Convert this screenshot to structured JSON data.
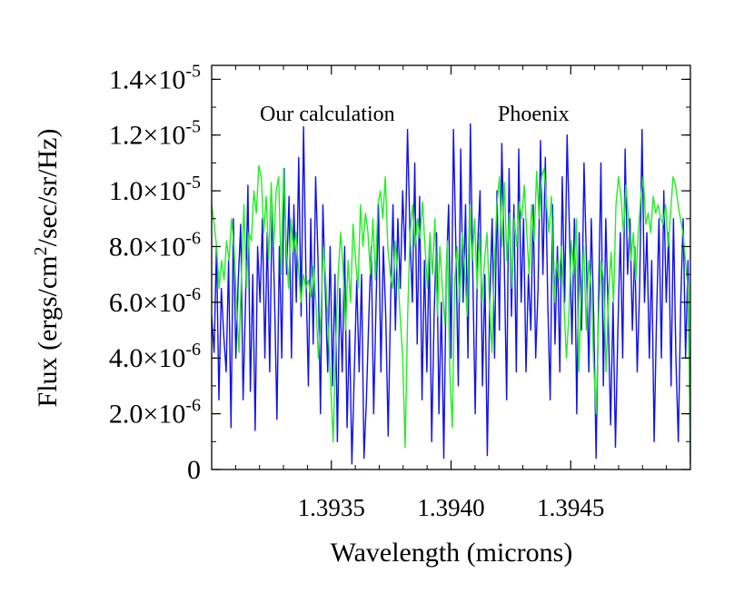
{
  "chart_data": {
    "type": "line",
    "xlabel": "Wavelength (microns)",
    "ylabel": "Flux (ergs/cm²/sec/sr/Hz)",
    "xlim": [
      1.393,
      1.395
    ],
    "ylim": [
      0,
      1.45e-05
    ],
    "x_ticks": [
      {
        "value": 1.3935,
        "label": "1.3935"
      },
      {
        "value": 1.394,
        "label": "1.3940"
      },
      {
        "value": 1.3945,
        "label": "1.3945"
      }
    ],
    "y_ticks": [
      {
        "value": 0,
        "mantissa": "0",
        "exponent": ""
      },
      {
        "value": 2e-06,
        "mantissa": "2.0×10",
        "exponent": "-6"
      },
      {
        "value": 4e-06,
        "mantissa": "4.0×10",
        "exponent": "-6"
      },
      {
        "value": 6e-06,
        "mantissa": "6.0×10",
        "exponent": "-6"
      },
      {
        "value": 8e-06,
        "mantissa": "8.0×10",
        "exponent": "-6"
      },
      {
        "value": 1e-05,
        "mantissa": "1.0×10",
        "exponent": "-5"
      },
      {
        "value": 1.2e-05,
        "mantissa": "1.2×10",
        "exponent": "-5"
      },
      {
        "value": 1.4e-05,
        "mantissa": "1.4×10",
        "exponent": "-5"
      }
    ],
    "series": [
      {
        "name": "Our calculation",
        "color": "#1010ee",
        "x_start": 1.393,
        "x_end": 1.395,
        "values": [
          5.5e-06,
          4.2e-06,
          8e-06,
          2.5e-06,
          6.5e-06,
          4.8e-06,
          3.5e-06,
          7.5e-06,
          1.5e-06,
          9e-06,
          4e-06,
          6.8e-06,
          8.8e-06,
          2.5e-06,
          6e-06,
          1.02e-05,
          2.8e-06,
          7e-06,
          1.4e-06,
          8e-06,
          6e-06,
          9e-06,
          4e-06,
          8.5e-06,
          3.5e-06,
          9.5e-06,
          6.2e-06,
          1.8e-06,
          8e-06,
          4e-06,
          1.08e-05,
          7e-06,
          9.8e-06,
          4e-06,
          9.5e-06,
          6e-06,
          1.12e-05,
          5.5e-06,
          1.23e-05,
          7e-06,
          3e-06,
          9e-06,
          4.5e-06,
          1.05e-05,
          7.5e-06,
          2e-06,
          9.5e-06,
          6.5e-06,
          3.5e-06,
          8e-06,
          3e-06,
          7e-06,
          1e-06,
          6.5e-06,
          3.5e-06,
          8e-06,
          1.5e-06,
          5e-06,
          2e-07,
          3.5e-06,
          6.8e-06,
          3.5e-06,
          7e-06,
          4e-07,
          2.5e-06,
          5.5e-06,
          8e-06,
          2e-06,
          6e-06,
          9.5e-06,
          3.5e-06,
          8e-06,
          5.5e-06,
          1.2e-06,
          6e-06,
          9.5e-06,
          5e-06,
          9e-06,
          6.5e-06,
          1e-05,
          7.5e-06,
          1.22e-05,
          8.5e-06,
          6e-06,
          1.1e-05,
          4.5e-06,
          9.8e-06,
          2.5e-06,
          7.5e-06,
          3.5e-06,
          8e-06,
          1e-06,
          5.5e-06,
          8.5e-06,
          2e-06,
          6e-06,
          4e-07,
          7e-06,
          9.5e-06,
          4e-06,
          1.22e-05,
          8e-06,
          3e-06,
          1.15e-05,
          6e-06,
          9.5e-06,
          4e-06,
          1.24e-05,
          7e-06,
          2e-06,
          8e-06,
          1e-05,
          3e-06,
          7e-06,
          5e-07,
          6e-06,
          9e-06,
          4e-06,
          1e-05,
          5e-06,
          1.17e-05,
          7.5e-06,
          2.5e-06,
          1.08e-05,
          5.5e-06,
          9.5e-06,
          3.5e-06,
          1.15e-05,
          6e-06,
          9e-06,
          3.5e-06,
          7e-06,
          5e-06,
          9.5e-06,
          4e-06,
          6.5e-06,
          1.18e-05,
          7e-06,
          1.12e-05,
          6e-06,
          2.5e-06,
          9.5e-06,
          4.5e-06,
          8e-06,
          3.5e-06,
          1.05e-05,
          6e-06,
          1.2e-05,
          8.5e-06,
          4.5e-06,
          9e-06,
          2e-06,
          8.5e-06,
          5e-06,
          1.1e-05,
          7.5e-06,
          3.5e-06,
          9e-06,
          5.5e-06,
          4e-07,
          6e-06,
          1.1e-05,
          3e-06,
          9e-06,
          5.5e-06,
          1.6e-06,
          6e-06,
          8e-07,
          5e-06,
          8.5e-06,
          4e-06,
          1.15e-05,
          7e-06,
          9e-06,
          5e-06,
          8e-06,
          3.5e-06,
          6.5e-06,
          1.22e-05,
          6e-06,
          8.5e-06,
          4e-06,
          7.5e-06,
          1e-06,
          5.5e-06,
          9e-06,
          4e-06,
          1e-05,
          6e-06,
          8.5e-06,
          3e-06,
          9e-06,
          4e-06,
          1e-06,
          6e-06,
          9e-06,
          4e-06,
          7.5e-06,
          2e-07
        ]
      },
      {
        "name": "Phoenix",
        "color": "#22ee22",
        "x_start": 1.393,
        "x_end": 1.395,
        "values": [
          9.5e-06,
          8.8e-06,
          8e-06,
          6.5e-06,
          7.5e-06,
          6.8e-06,
          8.2e-06,
          7.5e-06,
          9e-06,
          8e-06,
          6e-06,
          4.2e-06,
          7e-06,
          9.5e-06,
          6.5e-06,
          8.5e-06,
          8.2e-06,
          1e-05,
          9.2e-06,
          1.09e-05,
          1.05e-05,
          8.5e-06,
          9.8e-06,
          7.5e-06,
          1.03e-05,
          8e-06,
          1e-05,
          1.05e-05,
          7e-06,
          1.08e-05,
          8.2e-06,
          6.5e-06,
          9e-06,
          7.8e-06,
          8.5e-06,
          7.2e-06,
          6e-06,
          7e-06,
          6.5e-06,
          6.8e-06,
          6.2e-06,
          7.3e-06,
          6e-06,
          4e-06,
          5.5e-06,
          8e-06,
          6.8e-06,
          5e-06,
          3e-06,
          1e-06,
          4.5e-06,
          7e-06,
          8.5e-06,
          7.2e-06,
          5e-06,
          7.5e-06,
          6e-06,
          8.8e-06,
          7.5e-06,
          6.5e-06,
          9.5e-06,
          8e-06,
          9.2e-06,
          8.5e-06,
          7e-06,
          9e-06,
          6.8e-06,
          9.5e-06,
          1e-05,
          9e-06,
          1.05e-05,
          8e-06,
          7e-06,
          6.5e-06,
          8.2e-06,
          7e-06,
          5.5e-06,
          4e-06,
          8e-07,
          5.5e-06,
          8.5e-06,
          9.5e-06,
          8e-06,
          9e-06,
          8.3e-06,
          9.6e-06,
          8e-06,
          6.5e-06,
          8.5e-06,
          7e-06,
          9e-06,
          5.5e-06,
          8e-06,
          6.5e-06,
          5.2e-06,
          8.2e-06,
          3.5e-06,
          1.5e-06,
          6.8e-06,
          8e-06,
          6e-06,
          8.5e-06,
          7.2e-06,
          5.5e-06,
          9.5e-06,
          7.5e-06,
          9e-06,
          6.5e-06,
          8.5e-06,
          6e-06,
          7.5e-06,
          8.5e-06,
          6e-06,
          4.2e-06,
          7.5e-06,
          9.5e-06,
          1.05e-05,
          8e-06,
          1.03e-05,
          7.5e-06,
          9.2e-06,
          6.5e-06,
          9e-06,
          8e-06,
          9.6e-06,
          9e-06,
          1.02e-05,
          8.5e-06,
          7e-06,
          9.5e-06,
          8.2e-06,
          1.07e-05,
          9e-06,
          1.05e-05,
          1.08e-05,
          9.5e-06,
          8.5e-06,
          9.8e-06,
          6e-06,
          7.5e-06,
          6.8e-06,
          8e-06,
          6e-06,
          4e-06,
          5.5e-06,
          8.2e-06,
          7e-06,
          9e-06,
          3.5e-06,
          6.5e-06,
          8e-06,
          5e-06,
          7.5e-06,
          6.5e-06,
          3.8e-06,
          2e-06,
          5.5e-06,
          7.5e-06,
          6.8e-06,
          3.5e-06,
          6.2e-06,
          7.8e-06,
          6e-06,
          9.5e-06,
          1.05e-05,
          9.8e-06,
          8.5e-06,
          1.02e-05,
          9e-06,
          7.5e-06,
          8.5e-06,
          6.8e-06,
          8.5e-06,
          9.8e-06,
          1.05e-05,
          8.8e-06,
          9.2e-06,
          8.5e-06,
          9.8e-06,
          9.2e-06,
          9.5e-06,
          9e-06,
          8.8e-06,
          9.5e-06,
          8e-06,
          9.2e-06,
          1.05e-05,
          1.02e-05,
          9.5e-06,
          9e-06,
          8.5e-06,
          7.5e-06,
          6.5e-06,
          8e-07
        ]
      }
    ]
  },
  "legend": [
    {
      "label": "Our calculation",
      "color": "#1010ee"
    },
    {
      "label": "Phoenix",
      "color": "#22ee22"
    }
  ]
}
